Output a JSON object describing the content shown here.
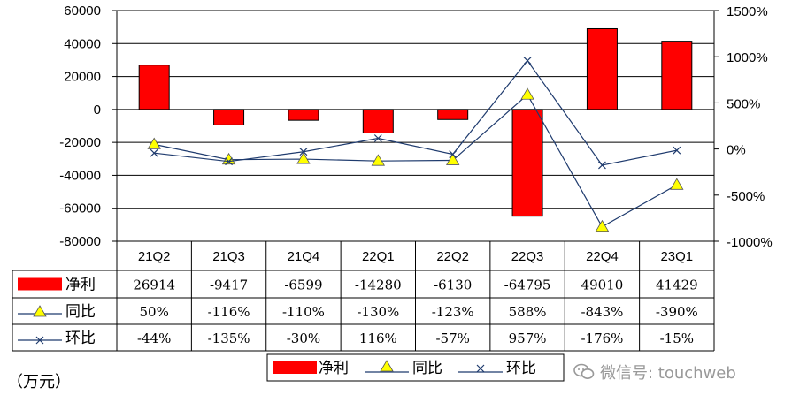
{
  "unit_label": "（万元）",
  "watermark": "微信号: touchweb",
  "chart_data": {
    "type": "bar",
    "categories": [
      "21Q2",
      "21Q3",
      "21Q4",
      "22Q1",
      "22Q2",
      "22Q3",
      "22Q4",
      "23Q1"
    ],
    "series": [
      {
        "name": "净利",
        "type": "bar",
        "axis": "left",
        "values": [
          26914,
          -9417,
          -6599,
          -14280,
          -6130,
          -64795,
          49010,
          41429
        ],
        "labels": [
          "26914",
          "-9417",
          "-6599",
          "-14280",
          "-6130",
          "-64795",
          "49010",
          "41429"
        ],
        "color": "#ff0000"
      },
      {
        "name": "同比",
        "type": "line",
        "axis": "right",
        "marker": "triangle",
        "values": [
          50,
          -116,
          -110,
          -130,
          -123,
          588,
          -843,
          -390
        ],
        "labels": [
          "50%",
          "-116%",
          "-110%",
          "-130%",
          "-123%",
          "588%",
          "-843%",
          "-390%"
        ],
        "color": "#1f3b6e",
        "marker_color": "#ffff00"
      },
      {
        "name": "环比",
        "type": "line",
        "axis": "right",
        "marker": "x",
        "values": [
          -44,
          -135,
          -30,
          116,
          -57,
          957,
          -176,
          -15
        ],
        "labels": [
          "-44%",
          "-135%",
          "-30%",
          "116%",
          "-57%",
          "957%",
          "-176%",
          "-15%"
        ],
        "color": "#1f3b6e"
      }
    ],
    "y_left": {
      "min": -80000,
      "max": 60000,
      "step": 20000,
      "ticks": [
        "60000",
        "40000",
        "20000",
        "0",
        "-20000",
        "-40000",
        "-60000",
        "-80000"
      ]
    },
    "y_right": {
      "min": -1000,
      "max": 1500,
      "step": 500,
      "ticks": [
        "1500%",
        "1000%",
        "500%",
        "0%",
        "-500%",
        "-1000%"
      ]
    },
    "grid": true,
    "data_table": true,
    "legend_position": "bottom"
  }
}
